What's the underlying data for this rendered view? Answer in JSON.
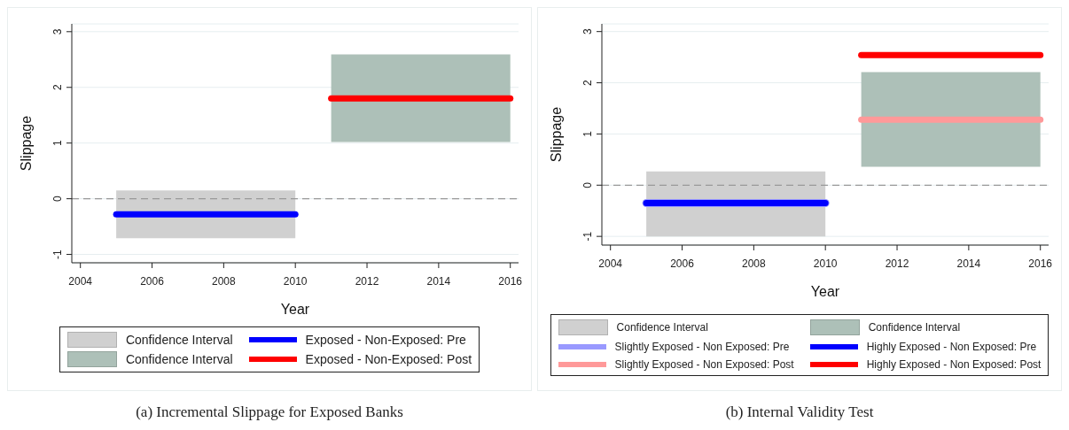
{
  "chart_data": [
    {
      "type": "line",
      "annotations": [
        "(a) Incremental Slippage for Exposed Banks"
      ],
      "xlabel": "Year",
      "ylabel": "Slippage",
      "xlim": [
        2003.76,
        2016.23
      ],
      "xticks": [
        2004,
        2006,
        2008,
        2010,
        2012,
        2014,
        2016
      ],
      "ylim": [
        -1.15,
        3.14
      ],
      "yticks": [
        -1,
        0,
        1,
        2,
        3
      ],
      "grid": "y",
      "legend": "bottom",
      "ref_lines": [
        {
          "axis": "y",
          "value": 0,
          "color": "#999999",
          "line_style": "dashed"
        }
      ],
      "series": [
        {
          "name": "Confidence Interval",
          "color": "#d0d0d0",
          "x": [
            2005,
            2010
          ],
          "values": [
            null,
            null
          ],
          "lower": [
            -0.71,
            -0.71
          ],
          "upper": [
            0.15,
            0.15
          ]
        },
        {
          "name": "Confidence Interval",
          "color": "#adc0b8",
          "x": [
            2011,
            2016
          ],
          "values": [
            null,
            null
          ],
          "lower": [
            1.02,
            1.02
          ],
          "upper": [
            2.59,
            2.59
          ]
        },
        {
          "name": "Exposed - Non-Exposed: Pre",
          "color": "#0000ff",
          "x": [
            2005,
            2010
          ],
          "values": [
            -0.28,
            -0.28
          ]
        },
        {
          "name": "Exposed - Non-Exposed: Post",
          "color": "#ff0000",
          "x": [
            2011,
            2016
          ],
          "values": [
            1.8,
            1.8
          ]
        }
      ]
    },
    {
      "type": "line",
      "annotations": [
        "(b) Internal Validity Test"
      ],
      "xlabel": "Year",
      "ylabel": "Slippage",
      "xlim": [
        2003.76,
        2016.23
      ],
      "xticks": [
        2004,
        2006,
        2008,
        2010,
        2012,
        2014,
        2016
      ],
      "ylim": [
        -1.17,
        3.15
      ],
      "yticks": [
        -1,
        0,
        1,
        2,
        3
      ],
      "grid": "y",
      "legend": "bottom",
      "ref_lines": [
        {
          "axis": "y",
          "value": 0,
          "color": "#999999",
          "line_style": "dashed"
        }
      ],
      "series": [
        {
          "name": "Confidence Interval",
          "color": "#d0d0d0",
          "x": [
            2005,
            2010
          ],
          "values": [
            null,
            null
          ],
          "lower": [
            -1.0,
            -1.0
          ],
          "upper": [
            0.27,
            0.27
          ]
        },
        {
          "name": "Slightly Exposed - Non Exposed: Pre",
          "color": "#9999ff",
          "x": [
            2005,
            2010
          ],
          "values": [
            -0.35,
            -0.35
          ]
        },
        {
          "name": "Slightly Exposed - Non Exposed: Post",
          "color": "#ff9999",
          "x": [
            2011,
            2016
          ],
          "values": [
            1.28,
            1.28
          ]
        },
        {
          "name": "Confidence Interval",
          "color": "#adc0b8",
          "x": [
            2011,
            2016
          ],
          "values": [
            null,
            null
          ],
          "lower": [
            0.36,
            0.36
          ],
          "upper": [
            2.21,
            2.21
          ]
        },
        {
          "name": "Highly Exposed - Non Exposed: Pre",
          "color": "#0000ff",
          "x": [
            2005,
            2010
          ],
          "values": [
            -0.35,
            -0.35
          ]
        },
        {
          "name": "Highly Exposed - Non Exposed: Post",
          "color": "#ff0000",
          "x": [
            2011,
            2016
          ],
          "values": [
            2.54,
            2.54
          ]
        }
      ]
    }
  ]
}
